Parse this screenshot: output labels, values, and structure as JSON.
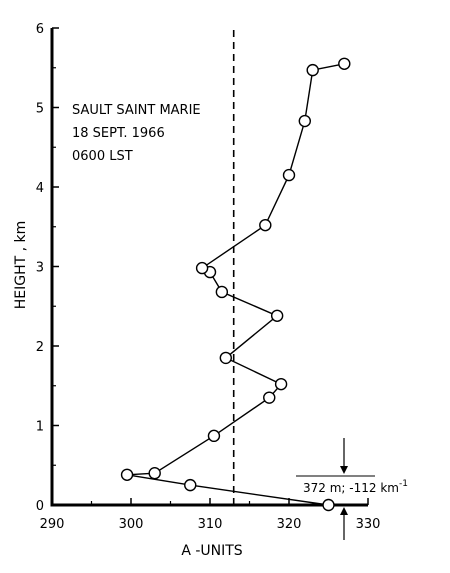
{
  "chart_data": {
    "type": "line",
    "xlabel": "A -UNITS",
    "ylabel": "HEIGHT , km",
    "xlim": [
      290,
      330
    ],
    "ylim": [
      0,
      6
    ],
    "x_ticks": [
      "290",
      "300",
      "310",
      "320",
      "330"
    ],
    "y_ticks": [
      "0",
      "1",
      "2",
      "3",
      "4",
      "5",
      "6"
    ],
    "annotation_lines": [
      "SAULT SAINT MARIE",
      "18 SEPT. 1966",
      "0600 LST"
    ],
    "reference_line": {
      "x": 313,
      "style": "dashed"
    },
    "inset_label": "372 m; -112 km",
    "inset_label_superscript": "-1",
    "series": [
      {
        "x": [
          325.0,
          307.5,
          299.5,
          303.0,
          310.5,
          317.5,
          319.0,
          312.0,
          318.5,
          311.5,
          310.0,
          309.0,
          317.0,
          320.0,
          322.0,
          323.0,
          327.0
        ],
        "y": [
          0.0,
          0.25,
          0.38,
          0.4,
          0.87,
          1.35,
          1.52,
          1.85,
          2.38,
          2.68,
          2.93,
          2.98,
          3.52,
          4.15,
          4.83,
          5.47,
          5.55
        ]
      }
    ]
  }
}
